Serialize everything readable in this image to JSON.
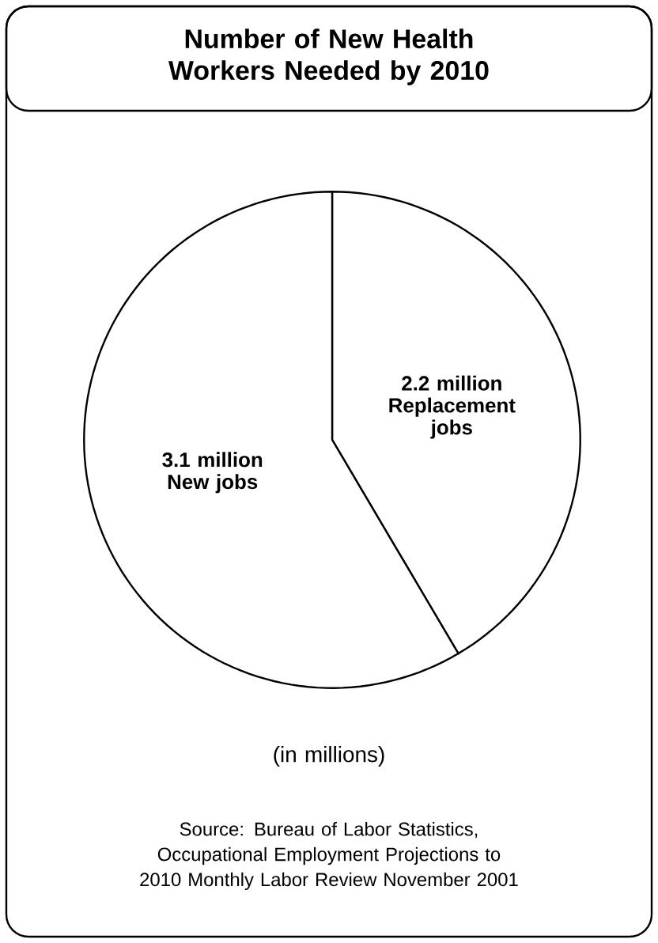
{
  "chart_data": {
    "type": "pie",
    "title": "Number of New Health Workers Needed by 2010",
    "categories": [
      "Replacement jobs",
      "New jobs"
    ],
    "values": [
      2.2,
      3.1
    ],
    "value_labels": [
      "2.2 million",
      "3.1 million"
    ],
    "colors": [
      "#ffffff",
      "#ffffff"
    ],
    "annotations": [
      "(in millions)",
      "Source: Bureau of Labor Statistics, Occupational Employment Projections to 2010 Monthly Labor Review November 2001"
    ]
  }
}
